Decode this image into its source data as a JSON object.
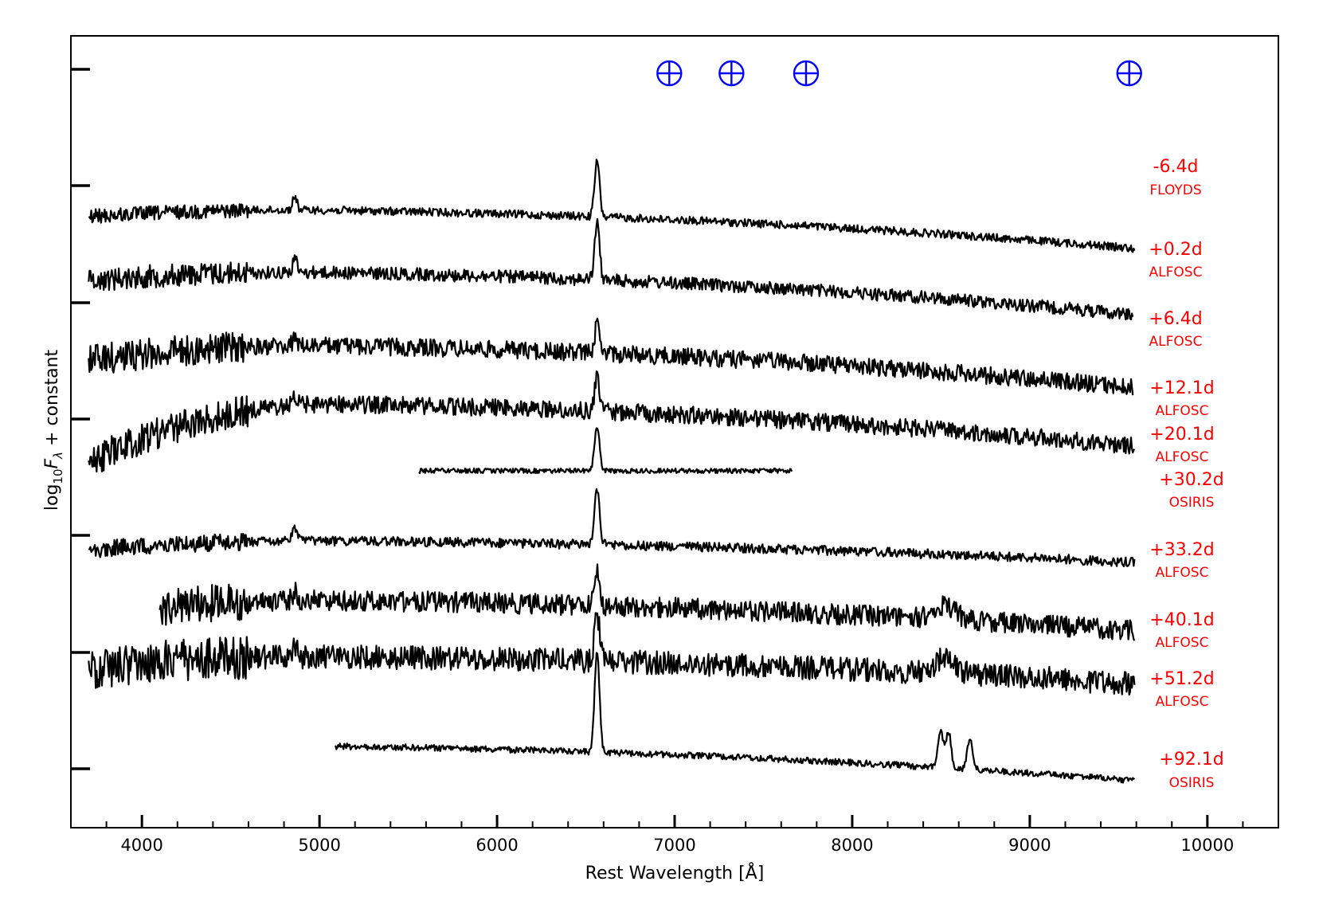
{
  "chart_data": {
    "type": "line",
    "title": "",
    "xlabel": "Rest Wavelength [Å]",
    "ylabel": "log10 Fλ + constant",
    "xlim": [
      3600,
      10400
    ],
    "x_ticks": [
      4000,
      5000,
      6000,
      7000,
      8000,
      9000,
      10000
    ],
    "x_tick_labels": [
      "4000",
      "5000",
      "6000",
      "7000",
      "8000",
      "9000",
      "10000"
    ],
    "y_tick_labels_shown": false,
    "grid": false,
    "telluric_markers": {
      "symbol": "⊕",
      "color": "#0000ff",
      "x": [
        6970,
        7320,
        7740,
        9560
      ]
    },
    "series": [
      {
        "epoch": "-6.4d",
        "instrument": "FLOYDS",
        "x_range": [
          3680,
          9590
        ],
        "noise": 1.0,
        "halpha": 0.9
      },
      {
        "epoch": "+0.2d",
        "instrument": "ALFOSC",
        "x_range": [
          3700,
          9590
        ],
        "noise": 0.15,
        "halpha": 0.6
      },
      {
        "epoch": "+6.4d",
        "instrument": "ALFOSC",
        "x_range": [
          3700,
          9580
        ],
        "noise": 0.25,
        "halpha": 0.6
      },
      {
        "epoch": "+12.1d",
        "instrument": "ALFOSC",
        "x_range": [
          3700,
          9580
        ],
        "noise": 0.35,
        "halpha": 0.3
      },
      {
        "epoch": "+20.1d",
        "instrument": "ALFOSC",
        "x_range": [
          3700,
          9590
        ],
        "noise": 0.35,
        "halpha": 0.35
      },
      {
        "epoch": "+30.2d",
        "instrument": "OSIRIS",
        "x_range": [
          5560,
          7660
        ],
        "noise": 0.08,
        "halpha": 0.5
      },
      {
        "epoch": "+33.2d",
        "instrument": "ALFOSC",
        "x_range": [
          3700,
          9590
        ],
        "noise": 0.2,
        "halpha": 0.6
      },
      {
        "epoch": "+40.1d",
        "instrument": "ALFOSC",
        "x_range": [
          4100,
          9590
        ],
        "noise": 0.45,
        "halpha": 0.4
      },
      {
        "epoch": "+51.2d",
        "instrument": "ALFOSC",
        "x_range": [
          3700,
          9590
        ],
        "noise": 0.5,
        "halpha": 0.55
      },
      {
        "epoch": "+92.1d",
        "instrument": "OSIRIS",
        "x_range": [
          5090,
          9590
        ],
        "noise": 0.12,
        "halpha": 1.3
      }
    ]
  }
}
